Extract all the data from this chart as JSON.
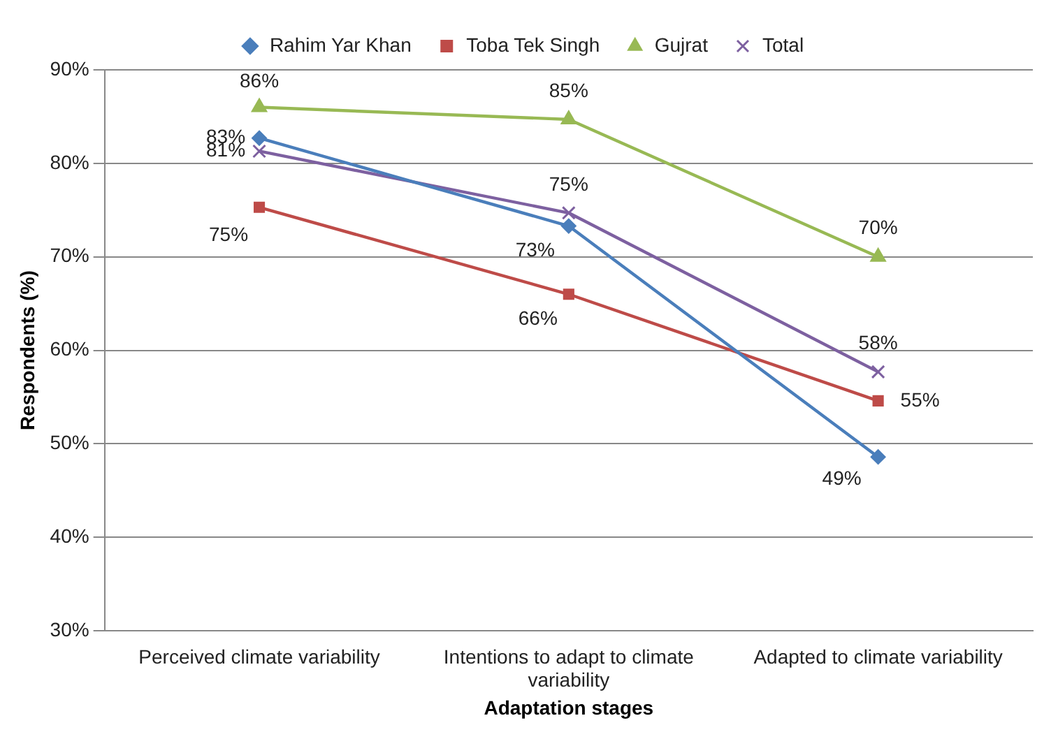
{
  "chart_data": {
    "type": "line",
    "xlabel": "Adaptation stages",
    "ylabel": "Respondents (%)",
    "categories": [
      "Perceived climate variability",
      "Intentions to adapt to climate variability",
      "Adapted to climate variability"
    ],
    "series": [
      {
        "name": "Rahim Yar Khan",
        "color": "#4a7ebb",
        "marker": "diamond",
        "values": [
          82.7,
          73.3,
          48.6
        ],
        "value_labels": [
          "83%",
          "73%",
          "49%"
        ]
      },
      {
        "name": "Toba Tek Singh",
        "color": "#be4b48",
        "marker": "square",
        "values": [
          75.3,
          66,
          54.6
        ],
        "value_labels": [
          "75%",
          "66%",
          "55%"
        ]
      },
      {
        "name": "Gujrat",
        "color": "#98b954",
        "marker": "triangle",
        "values": [
          86,
          84.7,
          70
        ],
        "value_labels": [
          "86%",
          "85%",
          "70%"
        ]
      },
      {
        "name": "Total",
        "color": "#7d60a0",
        "marker": "cross",
        "values": [
          81.3,
          74.7,
          57.7
        ],
        "value_labels": [
          "81%",
          "75%",
          "58%"
        ]
      }
    ],
    "ylim": [
      30,
      90
    ],
    "yticks": [
      {
        "value": 30,
        "label": "30%"
      },
      {
        "value": 40,
        "label": "40%"
      },
      {
        "value": 50,
        "label": "50%"
      },
      {
        "value": 60,
        "label": "60%"
      },
      {
        "value": 70,
        "label": "70%"
      },
      {
        "value": 80,
        "label": "80%"
      },
      {
        "value": 90,
        "label": "90%"
      }
    ],
    "grid": "y",
    "legend": "top"
  }
}
